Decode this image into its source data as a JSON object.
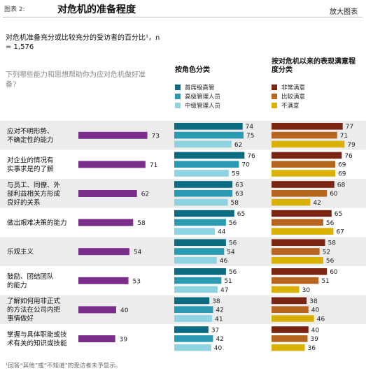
{
  "header": {
    "exhibit_label": "图表 2:",
    "title": "对危机的准备程度",
    "zoom_label": "放大图表"
  },
  "subtitle": "对危机准备充分或比较充分的受访者的百分比¹，n = 1,576",
  "question": "下列哪些能力和思想帮助你为应对危机做好准备?",
  "footnote": "¹回答“其他”或“不知道”的受访者未予显示。",
  "colors": {
    "overall": "#7b2d8b",
    "role": [
      "#0b6b80",
      "#2a9ab3",
      "#8fd3e3"
    ],
    "satisfaction": [
      "#7a2412",
      "#b5651d",
      "#d9b200"
    ],
    "stripe": "#ececec"
  },
  "chart_data": {
    "type": "bar",
    "categories": [
      "应对不明形势、不确定性的能力",
      "对企业的情况有实事求是的了解",
      "与员工、同僚、外部利益相关方形成良好的关系",
      "做出艰难决策的能力",
      "乐观主义",
      "鼓励、团结团队的能力",
      "了解如何用非正式的方法在公司内把事情做好",
      "掌握与具体职能或技术有关的知识或技能"
    ],
    "category_lines": [
      [
        "应对不明形势、",
        "不确定性的能力"
      ],
      [
        "对企业的情况有",
        "实事求是的了解"
      ],
      [
        "与员工、同僚、外",
        "部利益相关方形成",
        "良好的关系"
      ],
      [
        "做出艰难决策的能力"
      ],
      [
        "乐观主义"
      ],
      [
        "鼓励、团结团队",
        "的能力"
      ],
      [
        "了解如何用非正式",
        "的方法在公司内把",
        "事情做好"
      ],
      [
        "掌握与具体职能或技",
        "术有关的知识或技能"
      ]
    ],
    "overall": {
      "values": [
        73,
        71,
        62,
        58,
        54,
        53,
        40,
        39
      ]
    },
    "by_role": {
      "title": "按角色分类",
      "series": [
        {
          "name": "首席级高管",
          "values": [
            74,
            76,
            63,
            65,
            56,
            56,
            38,
            37
          ]
        },
        {
          "name": "高级管理人员",
          "values": [
            75,
            70,
            63,
            56,
            54,
            51,
            42,
            42
          ]
        },
        {
          "name": "中级管理人员",
          "values": [
            62,
            59,
            58,
            44,
            46,
            47,
            41,
            40
          ]
        }
      ]
    },
    "by_satisfaction": {
      "title": "按对危机以来的表现满意程度分类",
      "series": [
        {
          "name": "非常满意",
          "values": [
            77,
            76,
            68,
            65,
            58,
            60,
            38,
            40
          ]
        },
        {
          "name": "比较满意",
          "values": [
            71,
            69,
            60,
            56,
            52,
            51,
            40,
            39
          ]
        },
        {
          "name": "不满意",
          "values": [
            79,
            69,
            42,
            67,
            56,
            30,
            46,
            36
          ]
        }
      ]
    }
  }
}
